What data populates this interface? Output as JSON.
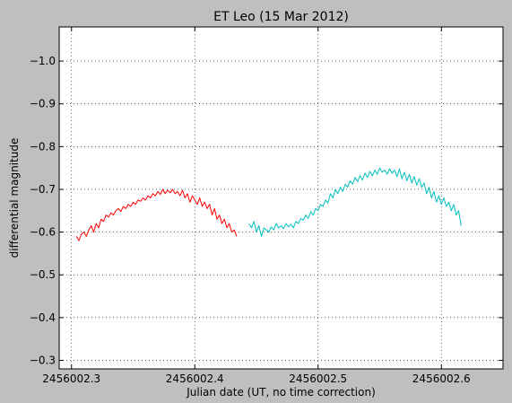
{
  "chart_data": {
    "type": "line",
    "title": "ET Leo (15 Mar 2012)",
    "xlabel": "Julian date (UT, no time correction)",
    "ylabel": "differential magnitude",
    "xlim": [
      2456002.29,
      2456002.65
    ],
    "ylim": [
      -0.28,
      -1.08
    ],
    "y_inverted": true,
    "grid": true,
    "x_ticks": [
      2456002.3,
      2456002.4,
      2456002.5,
      2456002.6
    ],
    "x_tick_labels": [
      "2456002.3",
      "2456002.4",
      "2456002.5",
      "2456002.6"
    ],
    "y_ticks": [
      -0.3,
      -0.4,
      -0.5,
      -0.6,
      -0.7,
      -0.8,
      -0.9,
      -1.0
    ],
    "y_tick_labels": [
      "−0.3",
      "−0.4",
      "−0.5",
      "−0.6",
      "−0.7",
      "−0.8",
      "−0.9",
      "−1.0"
    ],
    "series": [
      {
        "color": "#ff0000",
        "x": [
          2456002.304,
          2456002.306,
          2456002.308,
          2456002.31,
          2456002.312,
          2456002.314,
          2456002.316,
          2456002.318,
          2456002.32,
          2456002.322,
          2456002.324,
          2456002.326,
          2456002.328,
          2456002.33,
          2456002.332,
          2456002.334,
          2456002.336,
          2456002.338,
          2456002.34,
          2456002.342,
          2456002.344,
          2456002.346,
          2456002.348,
          2456002.35,
          2456002.352,
          2456002.354,
          2456002.356,
          2456002.358,
          2456002.36,
          2456002.362,
          2456002.364,
          2456002.366,
          2456002.368,
          2456002.37,
          2456002.372,
          2456002.374,
          2456002.376,
          2456002.378,
          2456002.38,
          2456002.382,
          2456002.384,
          2456002.386,
          2456002.388,
          2456002.39,
          2456002.392,
          2456002.394,
          2456002.396,
          2456002.398,
          2456002.4,
          2456002.402,
          2456002.404,
          2456002.406,
          2456002.408,
          2456002.41,
          2456002.412,
          2456002.414,
          2456002.416,
          2456002.418,
          2456002.42,
          2456002.422,
          2456002.424,
          2456002.426,
          2456002.428,
          2456002.43,
          2456002.432,
          2456002.434
        ],
        "y": [
          -0.59,
          -0.58,
          -0.595,
          -0.6,
          -0.59,
          -0.605,
          -0.615,
          -0.6,
          -0.62,
          -0.61,
          -0.63,
          -0.625,
          -0.64,
          -0.635,
          -0.645,
          -0.64,
          -0.65,
          -0.655,
          -0.648,
          -0.66,
          -0.655,
          -0.665,
          -0.66,
          -0.67,
          -0.665,
          -0.675,
          -0.672,
          -0.68,
          -0.675,
          -0.685,
          -0.68,
          -0.69,
          -0.685,
          -0.695,
          -0.688,
          -0.7,
          -0.69,
          -0.698,
          -0.692,
          -0.7,
          -0.69,
          -0.695,
          -0.685,
          -0.698,
          -0.68,
          -0.69,
          -0.67,
          -0.685,
          -0.675,
          -0.665,
          -0.68,
          -0.66,
          -0.67,
          -0.655,
          -0.665,
          -0.64,
          -0.655,
          -0.63,
          -0.64,
          -0.62,
          -0.63,
          -0.61,
          -0.62,
          -0.6,
          -0.605,
          -0.59
        ]
      },
      {
        "color": "#00bfbf",
        "x": [
          2456002.444,
          2456002.446,
          2456002.448,
          2456002.45,
          2456002.452,
          2456002.454,
          2456002.456,
          2456002.458,
          2456002.46,
          2456002.462,
          2456002.464,
          2456002.466,
          2456002.468,
          2456002.47,
          2456002.472,
          2456002.474,
          2456002.476,
          2456002.478,
          2456002.48,
          2456002.482,
          2456002.484,
          2456002.486,
          2456002.488,
          2456002.49,
          2456002.492,
          2456002.494,
          2456002.496,
          2456002.498,
          2456002.5,
          2456002.502,
          2456002.504,
          2456002.506,
          2456002.508,
          2456002.51,
          2456002.512,
          2456002.514,
          2456002.516,
          2456002.518,
          2456002.52,
          2456002.522,
          2456002.524,
          2456002.526,
          2456002.528,
          2456002.53,
          2456002.532,
          2456002.534,
          2456002.536,
          2456002.538,
          2456002.54,
          2456002.542,
          2456002.544,
          2456002.546,
          2456002.548,
          2456002.55,
          2456002.552,
          2456002.554,
          2456002.556,
          2456002.558,
          2456002.56,
          2456002.562,
          2456002.564,
          2456002.566,
          2456002.568,
          2456002.57,
          2456002.572,
          2456002.574,
          2456002.576,
          2456002.578,
          2456002.58,
          2456002.582,
          2456002.584,
          2456002.586,
          2456002.588,
          2456002.59,
          2456002.592,
          2456002.594,
          2456002.596,
          2456002.598,
          2456002.6,
          2456002.602,
          2456002.604,
          2456002.606,
          2456002.608,
          2456002.61,
          2456002.612,
          2456002.614,
          2456002.616
        ],
        "y": [
          -0.62,
          -0.61,
          -0.625,
          -0.6,
          -0.615,
          -0.59,
          -0.61,
          -0.605,
          -0.6,
          -0.612,
          -0.605,
          -0.62,
          -0.61,
          -0.615,
          -0.608,
          -0.62,
          -0.612,
          -0.618,
          -0.61,
          -0.625,
          -0.62,
          -0.632,
          -0.628,
          -0.64,
          -0.632,
          -0.648,
          -0.64,
          -0.655,
          -0.65,
          -0.665,
          -0.66,
          -0.675,
          -0.668,
          -0.69,
          -0.68,
          -0.7,
          -0.69,
          -0.705,
          -0.695,
          -0.712,
          -0.705,
          -0.72,
          -0.712,
          -0.728,
          -0.718,
          -0.732,
          -0.722,
          -0.738,
          -0.728,
          -0.742,
          -0.732,
          -0.745,
          -0.735,
          -0.75,
          -0.74,
          -0.745,
          -0.735,
          -0.748,
          -0.738,
          -0.745,
          -0.73,
          -0.748,
          -0.725,
          -0.74,
          -0.72,
          -0.735,
          -0.715,
          -0.73,
          -0.71,
          -0.725,
          -0.705,
          -0.715,
          -0.69,
          -0.705,
          -0.68,
          -0.695,
          -0.67,
          -0.685,
          -0.665,
          -0.68,
          -0.66,
          -0.67,
          -0.65,
          -0.665,
          -0.64,
          -0.65,
          -0.615
        ]
      }
    ]
  }
}
